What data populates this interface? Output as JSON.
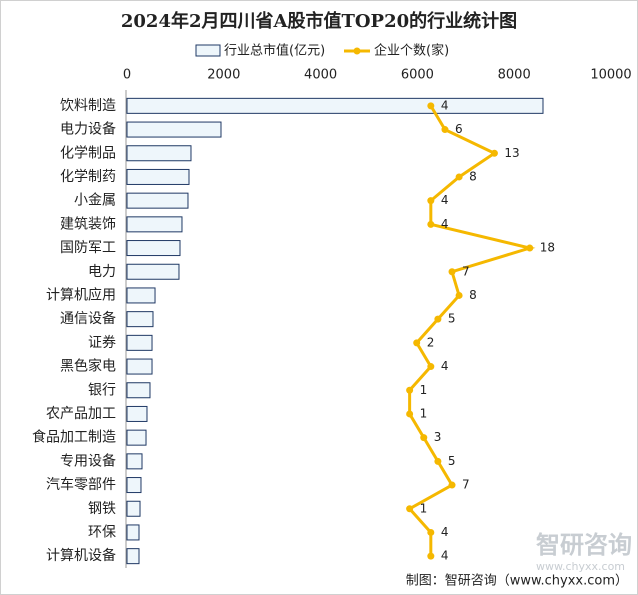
{
  "chart_data": {
    "type": "hbar-line",
    "title": "2024年2月四川省A股市值TOP20的行业统计图",
    "categories": [
      "饮料制造",
      "电力设备",
      "化学制品",
      "化学制药",
      "小金属",
      "建筑装饰",
      "国防军工",
      "电力",
      "计算机应用",
      "通信设备",
      "证券",
      "黑色家电",
      "银行",
      "农产品加工",
      "食品加工制造",
      "专用设备",
      "汽车零部件",
      "钢铁",
      "环保",
      "计算机设备"
    ],
    "series": [
      {
        "name": "行业总市值(亿元)",
        "color": "#eef6fb",
        "values": [
          8595,
          1942,
          1322,
          1281,
          1260,
          1136,
          1095,
          1074,
          579,
          537,
          517,
          517,
          475,
          413,
          393,
          310,
          289,
          269,
          248,
          248
        ]
      },
      {
        "name": "企业个数(家)",
        "color": "#f5b800",
        "axis": "x2",
        "values": [
          4,
          6,
          13,
          8,
          4,
          4,
          18,
          7,
          8,
          5,
          2,
          4,
          1,
          1,
          3,
          5,
          7,
          1,
          4,
          4
        ]
      }
    ],
    "xlim": [
      0,
      10000
    ],
    "xticks": [
      0,
      2000,
      4000,
      6000,
      8000,
      10000
    ],
    "x2lim": [
      -39,
      29.5
    ],
    "legend": "top",
    "watermark": "智研咨询",
    "watermark_url": "www.chyxx.com",
    "source": "制图：智研咨询（www.chyxx.com）"
  }
}
